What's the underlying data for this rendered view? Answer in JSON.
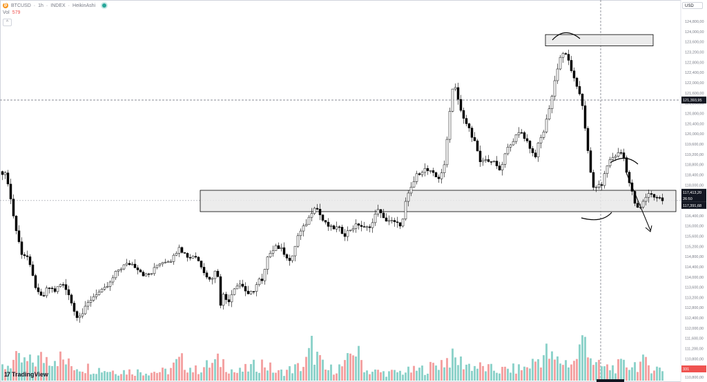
{
  "legend": {
    "symbol": "BTCUSD",
    "interval": "1h",
    "exchange": "INDEX",
    "chart_style": "HeikinAshi",
    "separator": "·",
    "volume_label": "Vol",
    "volume_value": "579",
    "collapse_glyph": "^"
  },
  "currency_label": "USD",
  "branding": {
    "name": "TradingView",
    "mark": "17"
  },
  "price_axis": {
    "labels": [
      "124,800,00",
      "124,000,00",
      "123,600,00",
      "123,200,00",
      "122,800,00",
      "122,400,00",
      "122,000,00",
      "121,600,00",
      "121,200,00",
      "120,800,00",
      "120,400,00",
      "120,000,00",
      "119,600,00",
      "119,200,00",
      "118,800,00",
      "118,400,00",
      "118,000,00",
      "117,600,00",
      "116,800,00",
      "116,400,00",
      "116,000,00",
      "115,600,00",
      "115,200,00",
      "114,800,00",
      "114,400,00",
      "114,000,00",
      "113,600,00",
      "113,200,00",
      "112,800,00",
      "112,400,00",
      "112,000,00",
      "111,600,00",
      "111,200,00",
      "110,800,00"
    ],
    "labels_note": "tick labels listed top to bottom as printed",
    "crosshair_label": "121,393,95",
    "last_price_label": "117,413,20",
    "countdown_label": "26:50",
    "current_price_label": "117,391,68",
    "volume_axis_label": "331",
    "volume_axis_footer": "110,800,00"
  },
  "chart_data": {
    "type": "candlestick",
    "style": "heikin-ashi",
    "ylim": [
      110800,
      124800
    ],
    "grid": false,
    "legend": "top-left",
    "colors": {
      "up": "#ffffff",
      "up_border": "#000000",
      "down": "#000000",
      "vol_up": "#8fd3cb",
      "vol_down": "#f4a3a3",
      "zone_fill": "#e9e9e9",
      "crosshair": "#787b86"
    },
    "crosshair_price": 121393.95,
    "current_price": 117391.68,
    "close_waypoints": [
      [
        0,
        118550
      ],
      [
        6,
        118500
      ],
      [
        11,
        118300
      ],
      [
        18,
        117100
      ],
      [
        25,
        116050
      ],
      [
        32,
        115300
      ],
      [
        40,
        115150
      ],
      [
        48,
        114350
      ],
      [
        55,
        113700
      ],
      [
        62,
        113500
      ],
      [
        70,
        113950
      ],
      [
        80,
        113800
      ],
      [
        90,
        114100
      ],
      [
        100,
        113700
      ],
      [
        110,
        112800
      ],
      [
        120,
        112900
      ],
      [
        130,
        113400
      ],
      [
        140,
        113700
      ],
      [
        150,
        113800
      ],
      [
        160,
        114100
      ],
      [
        170,
        114600
      ],
      [
        180,
        114800
      ],
      [
        190,
        114900
      ],
      [
        200,
        114700
      ],
      [
        210,
        114400
      ],
      [
        220,
        114500
      ],
      [
        230,
        114900
      ],
      [
        240,
        115000
      ],
      [
        250,
        115050
      ],
      [
        260,
        115600
      ],
      [
        265,
        115350
      ],
      [
        275,
        115100
      ],
      [
        282,
        115250
      ],
      [
        290,
        114900
      ],
      [
        300,
        114400
      ],
      [
        305,
        114200
      ],
      [
        315,
        114700
      ],
      [
        320,
        113300
      ],
      [
        325,
        113700
      ],
      [
        330,
        113300
      ],
      [
        340,
        113950
      ],
      [
        350,
        114100
      ],
      [
        360,
        113600
      ],
      [
        370,
        113900
      ],
      [
        375,
        114250
      ],
      [
        380,
        114150
      ],
      [
        390,
        115300
      ],
      [
        400,
        115600
      ],
      [
        410,
        115400
      ],
      [
        420,
        115000
      ],
      [
        425,
        115150
      ],
      [
        430,
        115900
      ],
      [
        440,
        116300
      ],
      [
        450,
        116800
      ],
      [
        455,
        117200
      ],
      [
        460,
        117050
      ],
      [
        470,
        116500
      ],
      [
        480,
        116300
      ],
      [
        490,
        116300
      ],
      [
        500,
        116050
      ],
      [
        510,
        116300
      ],
      [
        520,
        116450
      ],
      [
        530,
        116250
      ],
      [
        540,
        116500
      ],
      [
        548,
        117100
      ],
      [
        555,
        116650
      ],
      [
        565,
        116600
      ],
      [
        575,
        116450
      ],
      [
        583,
        116450
      ],
      [
        588,
        117300
      ],
      [
        595,
        117850
      ],
      [
        605,
        118450
      ],
      [
        615,
        118650
      ],
      [
        625,
        118500
      ],
      [
        635,
        118250
      ],
      [
        645,
        118800
      ],
      [
        650,
        120500
      ],
      [
        655,
        121800
      ],
      [
        660,
        121950
      ],
      [
        665,
        121300
      ],
      [
        670,
        120700
      ],
      [
        675,
        120500
      ],
      [
        680,
        120250
      ],
      [
        690,
        119600
      ],
      [
        695,
        118850
      ],
      [
        700,
        119000
      ],
      [
        710,
        119000
      ],
      [
        720,
        118800
      ],
      [
        725,
        118450
      ],
      [
        730,
        119100
      ],
      [
        740,
        119700
      ],
      [
        750,
        120000
      ],
      [
        755,
        120150
      ],
      [
        765,
        119700
      ],
      [
        775,
        119100
      ],
      [
        780,
        119600
      ],
      [
        790,
        120300
      ],
      [
        795,
        121000
      ],
      [
        800,
        121550
      ],
      [
        805,
        122300
      ],
      [
        810,
        122950
      ],
      [
        815,
        123300
      ],
      [
        820,
        123150
      ],
      [
        825,
        122900
      ],
      [
        830,
        122400
      ],
      [
        835,
        121900
      ],
      [
        840,
        121650
      ],
      [
        845,
        121100
      ],
      [
        850,
        119800
      ],
      [
        855,
        118600
      ],
      [
        860,
        117900
      ],
      [
        865,
        118000
      ],
      [
        870,
        117900
      ],
      [
        875,
        118300
      ],
      [
        880,
        118800
      ],
      [
        885,
        119050
      ],
      [
        890,
        119150
      ],
      [
        895,
        119250
      ],
      [
        900,
        119300
      ],
      [
        905,
        119050
      ],
      [
        910,
        118300
      ],
      [
        915,
        117800
      ],
      [
        920,
        117300
      ],
      [
        925,
        117000
      ],
      [
        930,
        117200
      ],
      [
        935,
        117500
      ],
      [
        940,
        117700
      ],
      [
        945,
        117600
      ],
      [
        950,
        117550
      ],
      [
        955,
        117500
      ],
      [
        960,
        117400
      ]
    ],
    "volume_profile": [
      [
        0,
        25
      ],
      [
        20,
        40
      ],
      [
        40,
        35
      ],
      [
        60,
        45
      ],
      [
        80,
        50
      ],
      [
        100,
        30
      ],
      [
        130,
        25
      ],
      [
        160,
        20
      ],
      [
        200,
        18
      ],
      [
        240,
        18
      ],
      [
        260,
        40
      ],
      [
        280,
        20
      ],
      [
        320,
        40
      ],
      [
        340,
        15
      ],
      [
        380,
        35
      ],
      [
        400,
        15
      ],
      [
        440,
        30
      ],
      [
        450,
        65
      ],
      [
        470,
        20
      ],
      [
        500,
        30
      ],
      [
        510,
        68
      ],
      [
        530,
        20
      ],
      [
        560,
        15
      ],
      [
        600,
        20
      ],
      [
        620,
        25
      ],
      [
        650,
        45
      ],
      [
        680,
        30
      ],
      [
        700,
        25
      ],
      [
        720,
        20
      ],
      [
        760,
        25
      ],
      [
        790,
        55
      ],
      [
        800,
        40
      ],
      [
        830,
        35
      ],
      [
        848,
        95
      ],
      [
        852,
        60
      ],
      [
        860,
        30
      ],
      [
        880,
        25
      ],
      [
        900,
        30
      ],
      [
        930,
        35
      ],
      [
        960,
        20
      ]
    ],
    "zones": [
      {
        "name": "upper-supply-zone",
        "y_top": 124000,
        "y_bottom": 123550
      },
      {
        "name": "support-resistance-zone",
        "y_top": 117800,
        "y_bottom": 116950
      }
    ],
    "annotations": [
      "arc-top-peak",
      "arc-second-top",
      "arc-bottom",
      "down-arrow"
    ]
  }
}
